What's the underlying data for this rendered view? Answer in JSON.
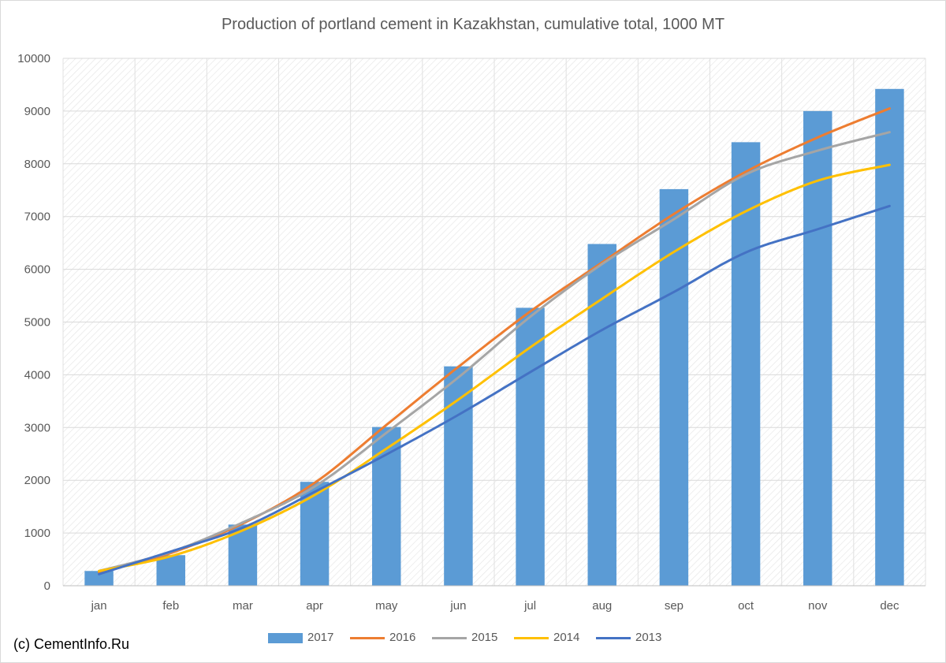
{
  "chart_data": {
    "type": "bar",
    "title": "Production of portland cement in Kazakhstan, cumulative total, 1000 MT",
    "categories": [
      "jan",
      "feb",
      "mar",
      "apr",
      "may",
      "jun",
      "jul",
      "aug",
      "sep",
      "oct",
      "nov",
      "dec"
    ],
    "ylim": [
      0,
      10000
    ],
    "yticks": [
      "0",
      "1000",
      "2000",
      "3000",
      "4000",
      "5000",
      "6000",
      "7000",
      "8000",
      "9000",
      "10000"
    ],
    "grid": true,
    "legend_position": "bottom",
    "series": [
      {
        "name": "2017",
        "kind": "bar",
        "color": "#5b9bd5",
        "values": [
          280,
          580,
          1160,
          1970,
          3010,
          4160,
          5270,
          6480,
          7520,
          8410,
          9000,
          9420
        ]
      },
      {
        "name": "2016",
        "kind": "line",
        "color": "#ed7d31",
        "values": [
          250,
          620,
          1180,
          1950,
          3050,
          4150,
          5200,
          6130,
          7050,
          7850,
          8500,
          9050
        ]
      },
      {
        "name": "2015",
        "kind": "line",
        "color": "#a5a5a5",
        "values": [
          280,
          640,
          1200,
          1880,
          2900,
          3950,
          5100,
          6100,
          6950,
          7800,
          8250,
          8600
        ]
      },
      {
        "name": "2014",
        "kind": "line",
        "color": "#ffc000",
        "values": [
          280,
          560,
          1050,
          1720,
          2600,
          3530,
          4520,
          5440,
          6330,
          7100,
          7680,
          7980
        ]
      },
      {
        "name": "2013",
        "kind": "line",
        "color": "#4472c4",
        "values": [
          220,
          650,
          1100,
          1780,
          2490,
          3240,
          4050,
          4850,
          5570,
          6320,
          6760,
          7200
        ]
      }
    ]
  },
  "credit": "(c) CementInfo.Ru"
}
